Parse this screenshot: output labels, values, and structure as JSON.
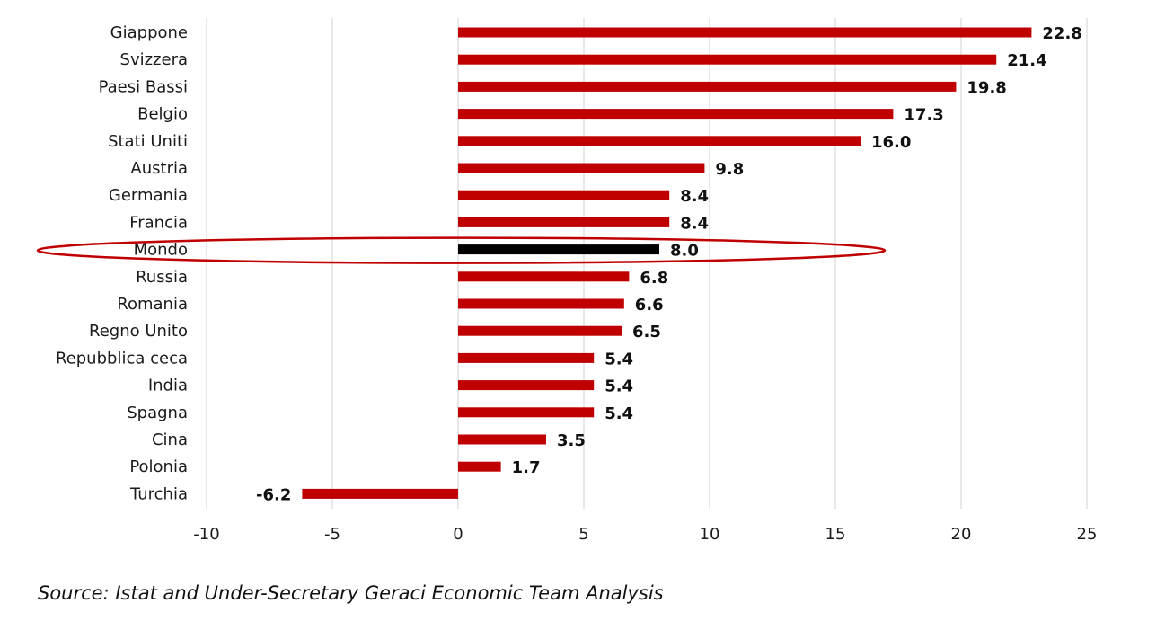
{
  "chart_data": {
    "type": "bar",
    "orientation": "horizontal",
    "categories": [
      "Giappone",
      "Svizzera",
      "Paesi Bassi",
      "Belgio",
      "Stati Uniti",
      "Austria",
      "Germania",
      "Francia",
      "Mondo",
      "Russia",
      "Romania",
      "Regno Unito",
      "Repubblica ceca",
      "India",
      "Spagna",
      "Cina",
      "Polonia",
      "Turchia"
    ],
    "values": [
      22.8,
      21.4,
      19.8,
      17.3,
      16.0,
      9.8,
      8.4,
      8.4,
      8.0,
      6.8,
      6.6,
      6.5,
      5.4,
      5.4,
      5.4,
      3.5,
      1.7,
      -6.2
    ],
    "value_labels": [
      "22.8",
      "21.4",
      "19.8",
      "17.3",
      "16.0",
      "9.8",
      "8.4",
      "8.4",
      "8.0",
      "6.8",
      "6.6",
      "6.5",
      "5.4",
      "5.4",
      "5.4",
      "3.5",
      "1.7",
      "-6.2"
    ],
    "highlight_category": "Mondo",
    "xlim": [
      -10,
      25
    ],
    "xticks": [
      "-10",
      "-5",
      "0",
      "5",
      "10",
      "15",
      "20",
      "25"
    ],
    "xtick_values": [
      -10,
      -5,
      0,
      5,
      10,
      15,
      20,
      25
    ],
    "grid": true,
    "legend": false,
    "colors": {
      "bar": "#c00000",
      "highlight_bar": "#000000",
      "highlight_ellipse": "#c00000",
      "grid": "#d9d9d9"
    }
  },
  "source_note": "Source: Istat and Under-Secretary Geraci Economic Team Analysis"
}
